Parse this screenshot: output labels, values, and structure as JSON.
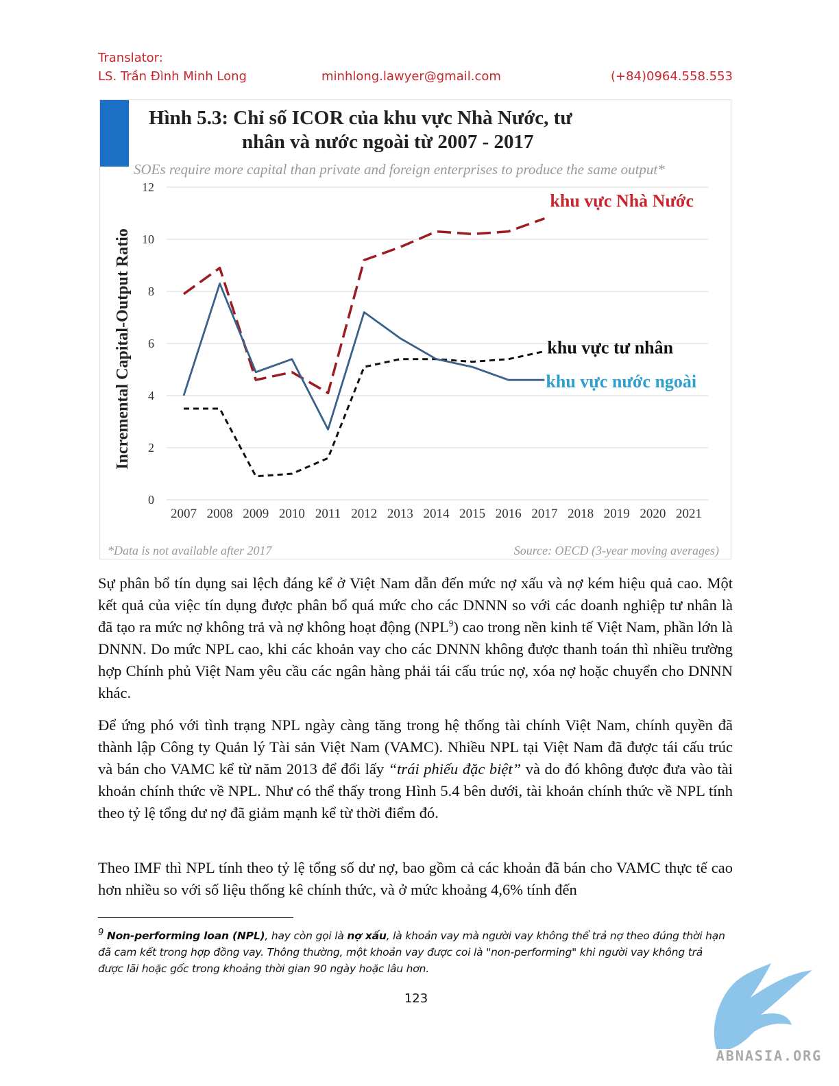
{
  "header": {
    "label": "Translator:",
    "name": "LS. Trần Đình Minh Long",
    "email": "minhlong.lawyer@gmail.com",
    "phone": "(+84)0964.558.553"
  },
  "chart_data": {
    "type": "line",
    "title": [
      "Hình 5.3: Chỉ số ICOR của khu vực Nhà Nước, tư",
      "nhân và nước ngoài từ 2007 - 2017"
    ],
    "subtitle": "SOEs require more capital than private and foreign enterprises to produce the same output*",
    "y_label": "Incremental Capital-Output Ratio",
    "categories": [
      "2007",
      "2008",
      "2009",
      "2010",
      "2011",
      "2012",
      "2013",
      "2014",
      "2015",
      "2016",
      "2017",
      "2018",
      "2019",
      "2020",
      "2021"
    ],
    "series": [
      {
        "name": "khu vực Nhà Nước",
        "color": "#9b1c22",
        "label_color": "#c8262d",
        "line_style": "long-dash",
        "values": [
          7.9,
          8.9,
          4.6,
          4.9,
          4.1,
          9.2,
          9.7,
          10.3,
          10.2,
          10.3,
          10.8,
          null,
          null,
          null,
          null
        ]
      },
      {
        "name": "khu vực tư nhân",
        "color": "#111111",
        "label_color": "#111111",
        "line_style": "short-dash",
        "values": [
          3.5,
          3.5,
          0.9,
          1.0,
          1.6,
          5.1,
          5.4,
          5.4,
          5.3,
          5.4,
          5.7,
          null,
          null,
          null,
          null
        ]
      },
      {
        "name": "khu vực nước ngoài",
        "color": "#3a6187",
        "label_color": "#2f9fd0",
        "line_style": "solid",
        "values": [
          4.0,
          8.3,
          4.9,
          5.4,
          2.7,
          7.2,
          6.2,
          5.4,
          5.1,
          4.6,
          4.6,
          null,
          null,
          null,
          null
        ]
      }
    ],
    "ylim": [
      0,
      12
    ],
    "yticks": [
      0,
      2,
      4,
      6,
      8,
      10,
      12
    ],
    "grid": true,
    "note": "*Data is not available after 2017",
    "source": "Source: OECD (3-year moving averages)"
  },
  "paragraphs": [
    [
      "Sự phân bổ tín dụng sai lệch đáng kể ở Việt Nam dẫn đến mức nợ xấu và nợ kém hiệu quả cao. Một kết quả của việc tín dụng được phân bổ quá mức cho các DNNN so với các doanh nghiệp tư nhân là đã tạo ra mức nợ không trả và nợ không hoạt động (NPL",
      "9",
      ") cao trong nền kinh tế Việt Nam, phần lớn là DNNN. Do mức NPL cao, khi các khoản vay cho các DNNN không được thanh toán thì nhiều trường hợp Chính phủ Việt Nam yêu cầu các ngân hàng phải tái cấu trúc nợ, xóa nợ hoặc chuyển cho DNNN khác."
    ],
    [
      "Để ứng phó với tình trạng NPL ngày càng tăng trong hệ thống tài chính Việt Nam, chính quyền đã thành lập Công ty Quản lý Tài sản Việt Nam (VAMC). Nhiều NPL tại Việt Nam đã được tái cấu trúc và bán cho VAMC kể từ năm 2013 để đổi lấy ",
      "“trái phiếu đặc biệt”",
      " và do đó không được đưa vào tài khoản chính thức về NPL. Như có thể thấy trong Hình 5.4 bên dưới, tài khoản chính thức về NPL tính theo tỷ lệ tổng dư nợ đã giảm mạnh kể từ thời điểm đó."
    ],
    [
      "Theo IMF thì NPL tính theo tỷ lệ tổng số dư nợ, bao gồm cả các khoản đã bán cho VAMC thực tế cao hơn nhiều so với số liệu thống kê chính thức, và ở mức khoảng 4,6% tính đến"
    ]
  ],
  "footnote": [
    "9",
    "Non-performing loan (NPL)",
    ", hay còn gọi là ",
    "nợ xấu",
    ", là khoản vay mà người vay không thể trả nợ theo đúng thời hạn đã cam kết trong hợp đồng vay. Thông thường, một khoản vay được coi là \"non-performing\" khi người vay không trả được lãi hoặc gốc trong khoảng thời gian 90 ngày hoặc lâu hơn."
  ],
  "page_number": "123",
  "logo": "ABNASIA.ORG"
}
